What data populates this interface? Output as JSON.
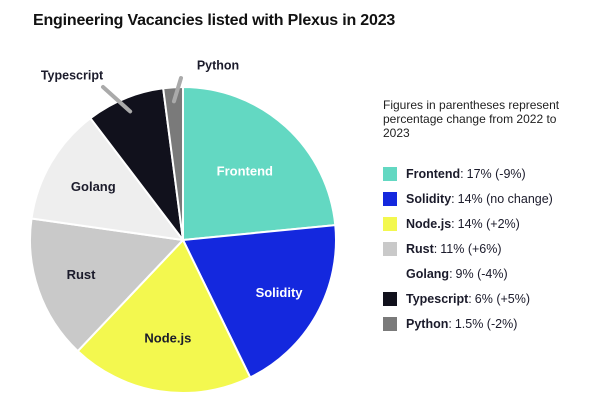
{
  "chart_data": {
    "type": "pie",
    "title": "Engineering Vacancies listed with Plexus in 2023",
    "note": "Figures in parentheses represent percentage change from 2022 to 2023",
    "slices": [
      {
        "label": "Frontend",
        "value": 17,
        "change": "-9%",
        "value_text": "17% (-9%)",
        "color": "#63d8c2"
      },
      {
        "label": "Solidity",
        "value": 14,
        "change": "no change",
        "value_text": "14% (no change)",
        "color": "#1428de"
      },
      {
        "label": "Node.js",
        "value": 14,
        "change": "+2%",
        "value_text": "14% (+2%)",
        "color": "#f3f84f"
      },
      {
        "label": "Rust",
        "value": 11,
        "change": "+6%",
        "value_text": "11% (+6%)",
        "color": "#c9c9c9"
      },
      {
        "label": "Golang",
        "value": 9,
        "change": "-4%",
        "value_text": "9% (-4%)",
        "color": "#eeeeee"
      },
      {
        "label": "Typescript",
        "value": 6,
        "change": "+5%",
        "value_text": "6% (+5%)",
        "color": "#11111c"
      },
      {
        "label": "Python",
        "value": 1.5,
        "change": "-2%",
        "value_text": "1.5% (-2%)",
        "color": "#7a7a7a"
      }
    ],
    "legend_position": "right",
    "colors": {
      "frontend_label": "#ffffff",
      "dark_label": "#1b1b2b",
      "callout_line": "#aaaaaa"
    }
  }
}
